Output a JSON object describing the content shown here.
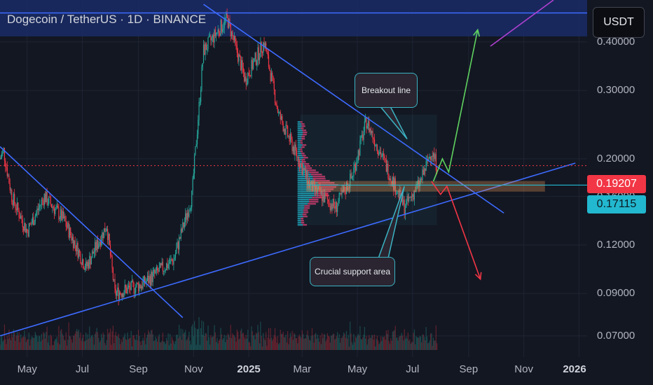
{
  "header": {
    "title": "Dogecoin / TetherUS · 1D · BINANCE",
    "currency_button": "USDT"
  },
  "colors": {
    "background": "#131722",
    "up_candle": "#26a69a",
    "down_candle": "#f23645",
    "trendline": "#3d6bff",
    "last_price_badge": "#f23645",
    "support_price_badge": "#22b8cf",
    "bullish_arrow": "#5fd35f",
    "bearish_arrow": "#f23645",
    "callout_border": "#3bb3c3"
  },
  "chart_data": {
    "type": "candlestick",
    "symbol": "DOGEUSDT",
    "timeframe": "1D",
    "exchange": "BINANCE",
    "price_scale": "log",
    "ylim": [
      0.066,
      0.48
    ],
    "y_ticks": [
      "0.40000",
      "0.30000",
      "0.20000",
      "0.16000",
      "0.12000",
      "0.09000",
      "0.07000"
    ],
    "x_ticks": [
      {
        "label": "May",
        "date": "2024-05-01"
      },
      {
        "label": "Jul",
        "date": "2024-07-01"
      },
      {
        "label": "Sep",
        "date": "2024-09-01"
      },
      {
        "label": "Nov",
        "date": "2024-11-01"
      },
      {
        "label": "2025",
        "date": "2025-01-01"
      },
      {
        "label": "Mar",
        "date": "2025-03-01"
      },
      {
        "label": "May",
        "date": "2025-05-01"
      },
      {
        "label": "Jul",
        "date": "2025-07-01"
      },
      {
        "label": "Sep",
        "date": "2025-09-01"
      },
      {
        "label": "Nov",
        "date": "2025-11-01"
      },
      {
        "label": "2026",
        "date": "2026-01-01"
      }
    ],
    "xlim": [
      "2024-04-01",
      "2026-01-10"
    ],
    "price_path": [
      {
        "date": "2024-04-01",
        "price": 0.2
      },
      {
        "date": "2024-04-05",
        "price": 0.21
      },
      {
        "date": "2024-04-14",
        "price": 0.16
      },
      {
        "date": "2024-05-01",
        "price": 0.13
      },
      {
        "date": "2024-05-20",
        "price": 0.16
      },
      {
        "date": "2024-06-10",
        "price": 0.14
      },
      {
        "date": "2024-07-05",
        "price": 0.105
      },
      {
        "date": "2024-07-28",
        "price": 0.135
      },
      {
        "date": "2024-08-06",
        "price": 0.09
      },
      {
        "date": "2024-09-05",
        "price": 0.095
      },
      {
        "date": "2024-10-10",
        "price": 0.11
      },
      {
        "date": "2024-10-30",
        "price": 0.16
      },
      {
        "date": "2024-11-12",
        "price": 0.38
      },
      {
        "date": "2024-12-08",
        "price": 0.46
      },
      {
        "date": "2024-12-28",
        "price": 0.32
      },
      {
        "date": "2025-01-18",
        "price": 0.4
      },
      {
        "date": "2025-02-03",
        "price": 0.26
      },
      {
        "date": "2025-03-10",
        "price": 0.17
      },
      {
        "date": "2025-04-07",
        "price": 0.15
      },
      {
        "date": "2025-04-25",
        "price": 0.18
      },
      {
        "date": "2025-05-11",
        "price": 0.25
      },
      {
        "date": "2025-06-22",
        "price": 0.15
      },
      {
        "date": "2025-07-10",
        "price": 0.175
      },
      {
        "date": "2025-07-22",
        "price": 0.21
      },
      {
        "date": "2025-07-28",
        "price": 0.192
      }
    ],
    "last_price": 0.19207,
    "support_level": 0.17115,
    "horizontal_resistance": 0.475,
    "support_zone": [
      0.165,
      0.175
    ],
    "trendlines": [
      {
        "name": "descending-2024",
        "from": {
          "date": "2024-04-01",
          "price": 0.215
        },
        "to": {
          "date": "2024-10-20",
          "price": 0.078
        }
      },
      {
        "name": "breakout-line",
        "from": {
          "date": "2024-11-12",
          "price": 0.5
        },
        "to": {
          "date": "2025-10-10",
          "price": 0.145
        }
      },
      {
        "name": "ascending-support",
        "from": {
          "date": "2024-04-01",
          "price": 0.07
        },
        "to": {
          "date": "2025-12-28",
          "price": 0.195
        }
      }
    ],
    "projections": [
      {
        "name": "bullish",
        "path": [
          {
            "date": "2025-07-24",
            "price": 0.175
          },
          {
            "date": "2025-08-03",
            "price": 0.2
          },
          {
            "date": "2025-08-10",
            "price": 0.185
          },
          {
            "date": "2025-09-11",
            "price": 0.43
          }
        ]
      },
      {
        "name": "bearish",
        "path": [
          {
            "date": "2025-07-22",
            "price": 0.175
          },
          {
            "date": "2025-08-01",
            "price": 0.162
          },
          {
            "date": "2025-08-08",
            "price": 0.17
          },
          {
            "date": "2025-09-14",
            "price": 0.098
          }
        ]
      }
    ],
    "annotations": [
      {
        "text": "Breakout line",
        "points_to": {
          "date": "2025-06-25",
          "price": 0.225
        }
      },
      {
        "text": "Crucial support area",
        "points_to": {
          "date": "2025-06-22",
          "price": 0.17
        }
      }
    ],
    "volume_profile_range": [
      0.135,
      0.25
    ]
  }
}
